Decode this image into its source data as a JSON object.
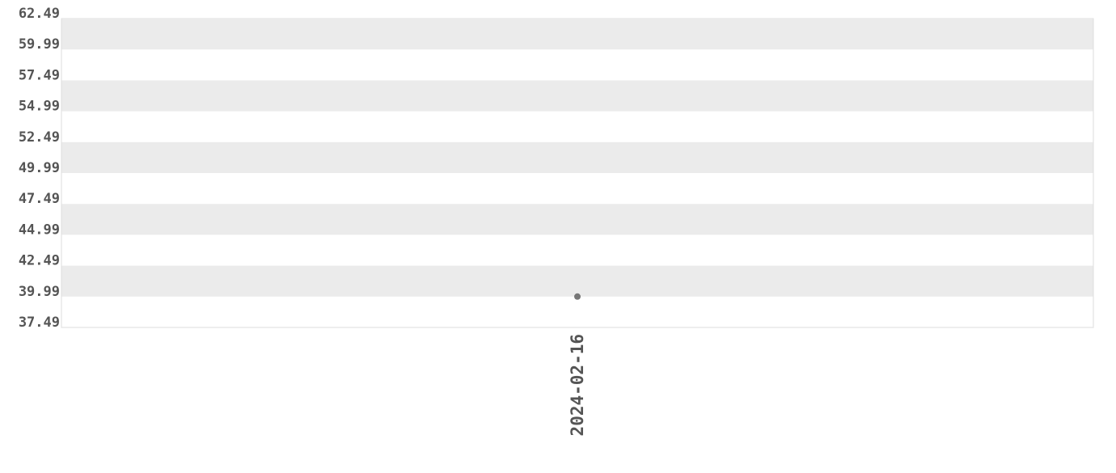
{
  "chart_data": {
    "type": "scatter",
    "title": "",
    "xlabel": "",
    "ylabel": "",
    "x_ticks": [
      "2024-02-16"
    ],
    "y_ticks": [
      "62.49",
      "59.99",
      "57.49",
      "54.99",
      "52.49",
      "49.99",
      "47.49",
      "44.99",
      "42.49",
      "39.99",
      "37.49"
    ],
    "ylim": [
      37.49,
      62.49
    ],
    "grid": "alternating horizontal bands",
    "points": [
      {
        "x": "2024-02-16",
        "y": 39.99
      }
    ],
    "colors": {
      "point": "#777777",
      "band": "#ebebeb",
      "text": "#555555",
      "border": "#dddddd"
    }
  }
}
